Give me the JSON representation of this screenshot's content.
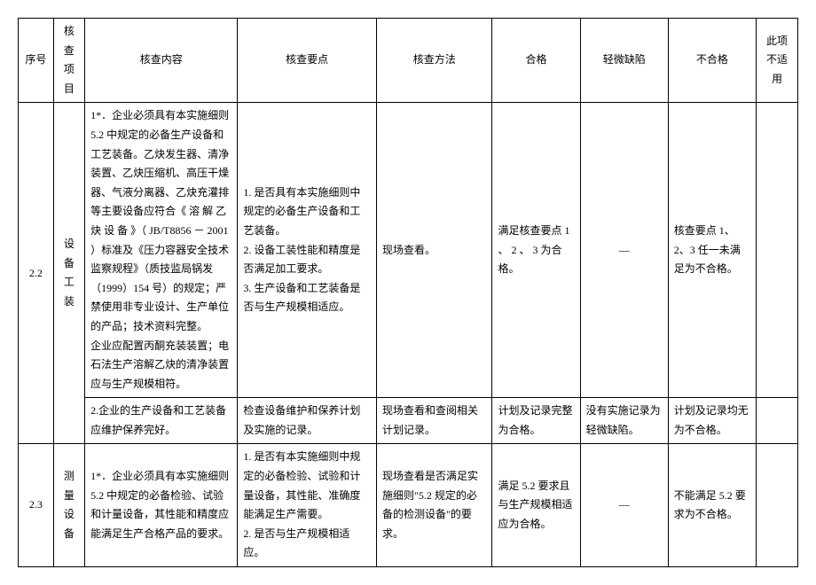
{
  "headers": {
    "seq": "序号",
    "item": "核查\n项目",
    "content": "核查内容",
    "keypoint": "核查要点",
    "method": "核查方法",
    "pass": "合格",
    "minor": "轻微缺陷",
    "fail": "不合格",
    "na": "此项\n不适用"
  },
  "rows": [
    {
      "seq": "2.2",
      "item": "设备\n工装",
      "content": "1*．企业必须具有本实施细则 5.2 中规定的必备生产设备和工艺装备。乙炔发生器、清净装置、乙炔压缩机、高压干燥器、气液分离器、乙炔充灌排等主要设备应符合《 溶 解 乙 炔 设 备 》（ JB/T8856 － 2001 ）标准及《压力容器安全技术监察规程》（质技监局锅发（1999）154 号）的规定；严禁使用非专业设计、生产单位的产品；技术资料完整。\n企业应配置丙酮充装装置；电石法生产溶解乙炔的清净装置应与生产规模相符。",
      "keypoint": "1. 是否具有本实施细则中规定的必备生产设备和工艺装备。\n2. 设备工装性能和精度是否满足加工要求。\n3. 生产设备和工艺装备是否与生产规模相适应。",
      "method": "现场查看。",
      "pass": "满足核查要点 1 、 2 、 3 为合格。",
      "minor": "—",
      "fail": "核查要点 1、2、3 任一未满足为不合格。"
    },
    {
      "content": "2.企业的生产设备和工艺装备应维护保养完好。",
      "keypoint": "检查设备维护和保养计划及实施的记录。",
      "method": "现场查看和查阅相关计划记录。",
      "pass": "计划及记录完整为合格。",
      "minor": "没有实施记录为轻微缺陷。",
      "fail": "计划及记录均无为不合格。"
    },
    {
      "seq": "2.3",
      "item": "测量\n设备",
      "content": "1*．企业必须具有本实施细则 5.2 中规定的必备检验、试验和计量设备，其性能和精度应能满足生产合格产品的要求。",
      "keypoint": "1. 是否有本实施细则中规定的必备检验、试验和计量设备，其性能、准确度能满足生产需要。\n2. 是否与生产规模相适应。",
      "method": "现场查看是否满足实施细则\"5.2 规定的必备的检测设备\"的要求。",
      "pass": "满足 5.2 要求且与生产规模相适应为合格。",
      "minor": "—",
      "fail": "不能满足 5.2 要求为不合格。"
    }
  ]
}
